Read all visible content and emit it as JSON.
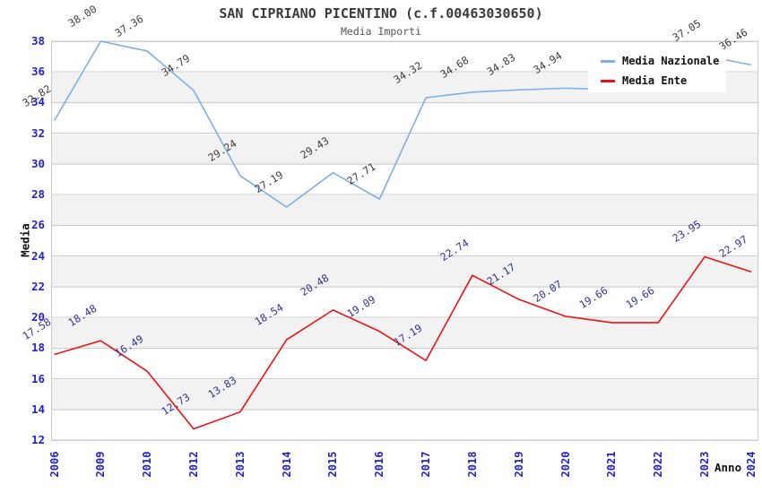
{
  "chart_data": {
    "type": "line",
    "title": "SAN CIPRIANO PICENTINO (c.f.00463030650)",
    "subtitle": "Media Importi",
    "ylabel": "Media",
    "xlabel": "Anno",
    "x": [
      "2006",
      "2009",
      "2010",
      "2012",
      "2013",
      "2014",
      "2015",
      "2016",
      "2017",
      "2018",
      "2019",
      "2020",
      "2021",
      "2022",
      "2023",
      "2024"
    ],
    "series": [
      {
        "name": "Media Nazionale",
        "color": "#7cb0e4",
        "label_color": "#3d3d3d",
        "values": [
          32.82,
          38.0,
          37.36,
          34.79,
          29.24,
          27.19,
          29.43,
          27.71,
          34.32,
          34.68,
          34.83,
          34.94,
          34.85,
          34.95,
          37.05,
          36.46
        ],
        "labels": [
          "32.82",
          "38.00",
          "37.36",
          "34.79",
          "29.24",
          "27.19",
          "29.43",
          "27.71",
          "34.32",
          "34.68",
          "34.83",
          "34.94",
          "",
          "",
          "37.05",
          "36.46"
        ]
      },
      {
        "name": "Media Ente",
        "color": "#e81414",
        "label_color": "#333399",
        "values": [
          17.58,
          18.48,
          16.49,
          12.73,
          13.83,
          18.54,
          20.48,
          19.09,
          17.19,
          22.74,
          21.17,
          20.07,
          19.66,
          19.66,
          23.95,
          22.97
        ],
        "labels": [
          "17.58",
          "18.48",
          "16.49",
          "12.73",
          "13.83",
          "18.54",
          "20.48",
          "19.09",
          "17.19",
          "22.74",
          "21.17",
          "20.07",
          "19.66",
          "19.66",
          "23.95",
          "22.97"
        ]
      }
    ],
    "ylim": [
      12,
      38
    ],
    "ytick_step": 2,
    "grid": "horizontal-only",
    "bands": true,
    "legend_position": "top-right"
  },
  "style": {
    "tick_label_color": "#2222cc",
    "grid_color": "#cccccc",
    "band_color": "#f2f2f2",
    "title_color": "#3a3a3a",
    "subtitle_color": "#555555",
    "background": "#ffffff"
  }
}
